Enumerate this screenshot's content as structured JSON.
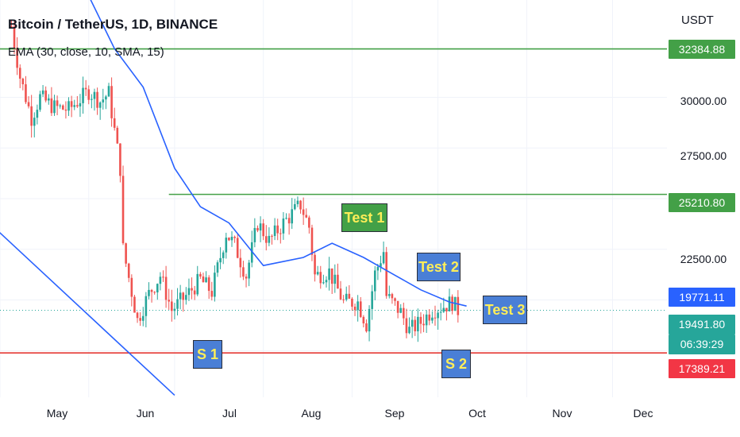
{
  "header": {
    "title": "Bitcoin / TetherUS, 1D, BINANCE",
    "indicator": "EMA (30, close, 10, SMA, 15)",
    "currency": "USDT"
  },
  "price_axis": {
    "ticks": [
      "30000.00",
      "27500.00",
      "22500.00"
    ],
    "tags": {
      "resistance_top": "32384.88",
      "resistance_mid": "25210.80",
      "ema_value": "19771.11",
      "last_price": "19491.80",
      "countdown": "06:39:29",
      "support": "17389.21"
    }
  },
  "time_axis": {
    "months": [
      "May",
      "Jun",
      "Jul",
      "Aug",
      "Sep",
      "Oct",
      "Nov",
      "Dec"
    ]
  },
  "annotations": {
    "s1": "S 1",
    "s2": "S 2",
    "test1": "Test 1",
    "test2": "Test 2",
    "test3": "Test 3"
  },
  "colors": {
    "up": "#26a69a",
    "down": "#ef5350",
    "ema": "#2962ff",
    "resistance": "#43a047",
    "support": "#e53935",
    "trend": "#2962ff",
    "label_green": "#43a047",
    "label_blue": "#2962ff",
    "label_red": "#f23645",
    "label_teal": "#26a69a",
    "anno_green": "#43a047",
    "anno_blue": "#4a7fd6"
  },
  "chart_data": {
    "type": "candlestick",
    "title": "Bitcoin / TetherUS, 1D, BINANCE",
    "ylabel": "USDT",
    "ylim": [
      15200,
      34800
    ],
    "xlim": [
      "2022-05-01",
      "2022-12-20"
    ],
    "levels": {
      "resistance_top": 32384.88,
      "resistance_mid": 25210.8,
      "support": 17389.21,
      "last_price": 19491.8,
      "ema_last": 19771.11
    },
    "trendline": [
      {
        "date": "2022-04-25",
        "price": 24100
      },
      {
        "date": "2022-07-01",
        "price": 15300
      }
    ],
    "close_path": [
      [
        "2022-05-05",
        33500
      ],
      [
        "2022-05-08",
        31000
      ],
      [
        "2022-05-12",
        29000
      ],
      [
        "2022-05-15",
        30000
      ],
      [
        "2022-05-20",
        29500
      ],
      [
        "2022-05-25",
        29400
      ],
      [
        "2022-06-01",
        30300
      ],
      [
        "2022-06-05",
        29800
      ],
      [
        "2022-06-08",
        30200
      ],
      [
        "2022-06-12",
        26500
      ],
      [
        "2022-06-13",
        22500
      ],
      [
        "2022-06-18",
        19000
      ],
      [
        "2022-06-22",
        20300
      ],
      [
        "2022-06-26",
        21200
      ],
      [
        "2022-06-30",
        19500
      ],
      [
        "2022-07-05",
        20200
      ],
      [
        "2022-07-10",
        21000
      ],
      [
        "2022-07-14",
        20400
      ],
      [
        "2022-07-19",
        23300
      ],
      [
        "2022-07-22",
        22700
      ],
      [
        "2022-07-26",
        21200
      ],
      [
        "2022-07-30",
        23800
      ],
      [
        "2022-08-03",
        22900
      ],
      [
        "2022-08-08",
        23800
      ],
      [
        "2022-08-14",
        24700
      ],
      [
        "2022-08-17",
        23600
      ],
      [
        "2022-08-19",
        21200
      ],
      [
        "2022-08-24",
        21400
      ],
      [
        "2022-08-29",
        19900
      ],
      [
        "2022-09-03",
        19900
      ],
      [
        "2022-09-06",
        18800
      ],
      [
        "2022-09-09",
        21300
      ],
      [
        "2022-09-12",
        22400
      ],
      [
        "2022-09-13",
        20200
      ],
      [
        "2022-09-18",
        19400
      ],
      [
        "2022-09-21",
        18500
      ],
      [
        "2022-09-25",
        18900
      ],
      [
        "2022-09-29",
        19500
      ],
      [
        "2022-10-03",
        19700
      ],
      [
        "2022-10-06",
        19900
      ],
      [
        "2022-10-08",
        19500
      ]
    ],
    "ema": [
      [
        "2022-06-01",
        35000
      ],
      [
        "2022-06-10",
        32400
      ],
      [
        "2022-06-20",
        30500
      ],
      [
        "2022-07-01",
        26500
      ],
      [
        "2022-07-10",
        24600
      ],
      [
        "2022-07-20",
        23800
      ],
      [
        "2022-08-01",
        21700
      ],
      [
        "2022-08-15",
        22100
      ],
      [
        "2022-08-25",
        22800
      ],
      [
        "2022-09-05",
        22100
      ],
      [
        "2022-09-15",
        21300
      ],
      [
        "2022-09-25",
        20500
      ],
      [
        "2022-10-05",
        19900
      ],
      [
        "2022-10-11",
        19700
      ]
    ]
  }
}
